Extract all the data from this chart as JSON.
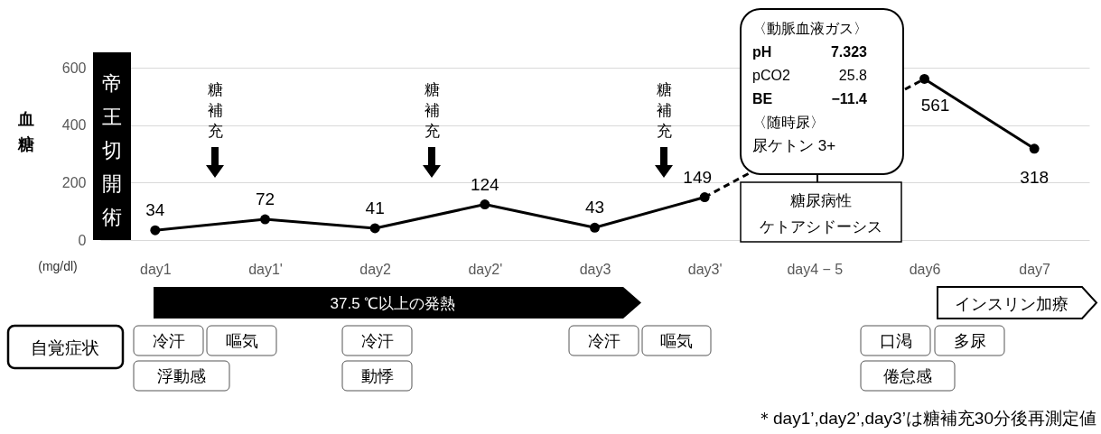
{
  "chart_data": {
    "type": "line",
    "categories": [
      "day1",
      "day1'",
      "day2",
      "day2'",
      "day3",
      "day3'",
      "day4 − 5",
      "day6",
      "day7"
    ],
    "ylabel": "血糖",
    "ylim": [
      0,
      600
    ],
    "yticks": [
      0,
      200,
      400,
      600
    ],
    "grid": "y",
    "series": [
      {
        "color": "#000000",
        "line_style": "solid",
        "marker": "circle",
        "data_labels": true,
        "values": [
          34,
          72,
          41,
          124,
          43,
          149,
          null,
          null,
          null
        ]
      },
      {
        "color": "#000000",
        "line_style": "solid",
        "marker": "circle",
        "data_labels": true,
        "values": [
          null,
          null,
          null,
          null,
          null,
          null,
          null,
          561,
          318
        ]
      },
      {
        "color": "#000000",
        "line_style": "dashed",
        "values": [
          null,
          null,
          null,
          null,
          null,
          149,
          null,
          561,
          null
        ]
      }
    ],
    "annotations": [
      "帝王切開術",
      "糖補充",
      "糖補充",
      "糖補充",
      "〈動脈血液ガス〉",
      "pH 7.323",
      "pCO2 25.8",
      "BE −11.4",
      "〈随時尿〉",
      "尿ケトン 3+",
      "糖尿病性ケトアシドーシス",
      "(mg/dl)",
      "37.5 ℃以上の発熱",
      "インスリン加療",
      "自覚症状",
      "冷汗",
      "嘔気",
      "浮動感",
      "冷汗",
      "動悸",
      "冷汗",
      "嘔気",
      "口渇",
      "多尿",
      "倦怠感",
      "＊day1’,day2’,day3’は糖補充30分後再測定値"
    ]
  }
}
